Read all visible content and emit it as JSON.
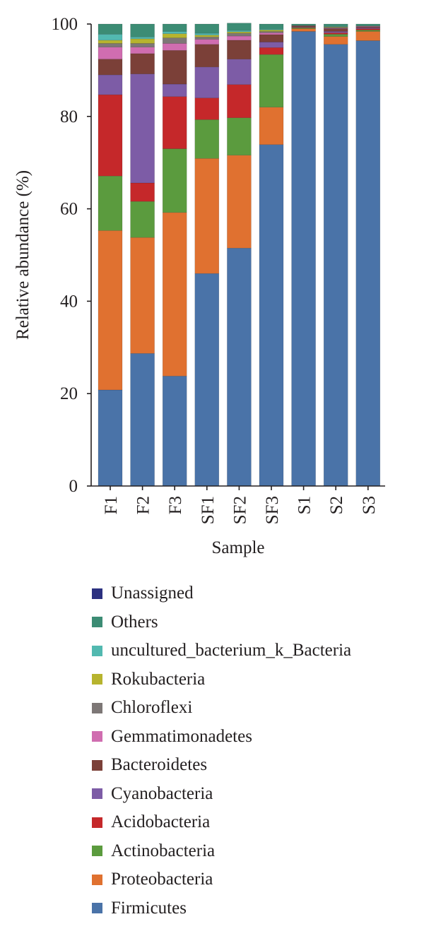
{
  "chart_data": {
    "type": "bar",
    "stacked": true,
    "title": "",
    "xlabel": "Sample",
    "ylabel": "Relative abundance (%)",
    "ylim": [
      0,
      100
    ],
    "yticks": [
      "0",
      "20",
      "40",
      "60",
      "80",
      "100"
    ],
    "grid": false,
    "legend_position": "bottom",
    "categories": [
      "F1",
      "F2",
      "F3",
      "SF1",
      "SF2",
      "SF3",
      "S1",
      "S2",
      "S3"
    ],
    "series": [
      {
        "name": "Firmicutes",
        "color": "#4a73a8",
        "values": [
          20.8,
          28.7,
          23.8,
          46.0,
          51.5,
          73.9,
          98.4,
          95.6,
          96.4
        ]
      },
      {
        "name": "Proteobacteria",
        "color": "#e07130",
        "values": [
          34.5,
          25.1,
          35.4,
          24.9,
          20.1,
          8.1,
          0.6,
          1.7,
          2.0
        ]
      },
      {
        "name": "Actinobacteria",
        "color": "#5b9b3e",
        "values": [
          11.8,
          7.8,
          13.8,
          8.4,
          8.1,
          11.4,
          0.2,
          0.5,
          0.3
        ]
      },
      {
        "name": "Acidobacteria",
        "color": "#c5282a",
        "values": [
          17.6,
          4.0,
          11.3,
          4.7,
          7.2,
          1.5,
          0.1,
          0.3,
          0.3
        ]
      },
      {
        "name": "Cyanobacteria",
        "color": "#7d5ca6",
        "values": [
          4.3,
          23.6,
          2.7,
          6.7,
          5.5,
          1.2,
          0.1,
          0.3,
          0.2
        ]
      },
      {
        "name": "Bacteroidetes",
        "color": "#7b4038",
        "values": [
          3.4,
          4.4,
          7.3,
          4.9,
          4.1,
          1.6,
          0.2,
          0.6,
          0.2
        ]
      },
      {
        "name": "Gemmatimonadetes",
        "color": "#d06db0",
        "values": [
          2.6,
          1.4,
          1.5,
          1.1,
          0.9,
          0.4,
          0.0,
          0.1,
          0.1
        ]
      },
      {
        "name": "Chloroflexi",
        "color": "#7d7776",
        "values": [
          0.8,
          0.8,
          1.2,
          0.5,
          0.6,
          0.3,
          0.1,
          0.2,
          0.1
        ]
      },
      {
        "name": "Rokubacteria",
        "color": "#b7b42e",
        "values": [
          0.7,
          1.0,
          0.9,
          0.4,
          0.3,
          0.3,
          0.0,
          0.1,
          0.0
        ]
      },
      {
        "name": "uncultured_bacterium_k_Bacteria",
        "color": "#52b9b0",
        "values": [
          1.3,
          0.4,
          0.5,
          0.4,
          0.3,
          0.2,
          0.0,
          0.1,
          0.0
        ]
      },
      {
        "name": "Others",
        "color": "#3c8c74",
        "values": [
          2.2,
          2.8,
          1.6,
          2.0,
          1.6,
          1.1,
          0.3,
          0.5,
          0.4
        ]
      },
      {
        "name": "Unassigned",
        "color": "#2c3180",
        "values": [
          0.0,
          0.0,
          0.0,
          0.0,
          0.0,
          0.0,
          0.0,
          0.0,
          0.0
        ]
      }
    ]
  }
}
